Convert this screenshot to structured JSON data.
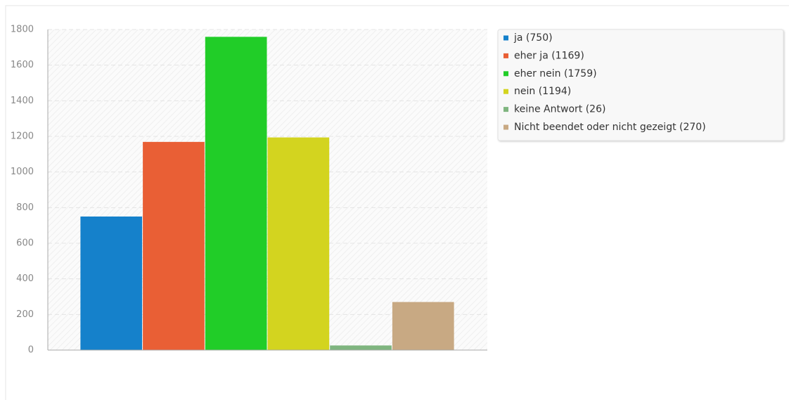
{
  "chart_data": {
    "type": "bar",
    "series": [
      {
        "name": "ja (750)",
        "color": "#1581cb",
        "values": [
          750
        ]
      },
      {
        "name": "eher ja (1169)",
        "color": "#e95f35",
        "values": [
          1169
        ]
      },
      {
        "name": "eher nein (1759)",
        "color": "#21cd28",
        "values": [
          1759
        ]
      },
      {
        "name": "nein (1194)",
        "color": "#d3d41f",
        "values": [
          1194
        ]
      },
      {
        "name": "keine Antwort (26)",
        "color": "#7fb57f",
        "values": [
          26
        ]
      },
      {
        "name": "Nicht beendet oder nicht gezeigt (270)",
        "color": "#c8a983",
        "values": [
          270
        ]
      }
    ],
    "ylim": [
      0,
      1800
    ],
    "yticks": [
      0,
      200,
      400,
      600,
      800,
      1000,
      1200,
      1400,
      1600,
      1800
    ],
    "grid": true,
    "legend": "right"
  }
}
